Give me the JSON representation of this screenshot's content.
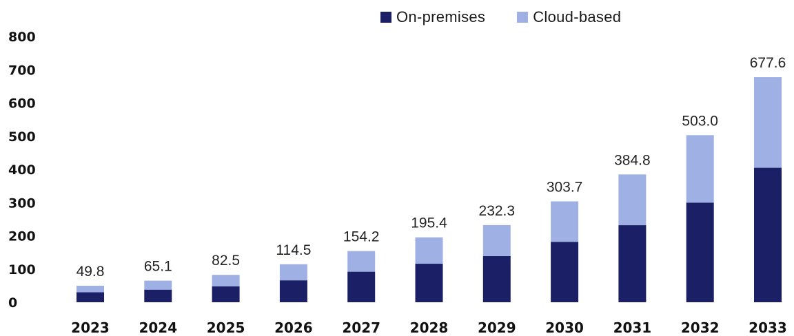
{
  "chart_data": {
    "type": "bar",
    "stacked": true,
    "categories": [
      "2023",
      "2024",
      "2025",
      "2026",
      "2027",
      "2028",
      "2029",
      "2030",
      "2031",
      "2032",
      "2033"
    ],
    "series": [
      {
        "name": "On-premises",
        "color": "#1a1f66",
        "values": [
          30,
          38,
          48,
          66,
          92,
          116,
          139,
          182,
          232,
          300,
          405
        ]
      },
      {
        "name": "Cloud-based",
        "color": "#9fb1e4",
        "values": [
          19.8,
          27.1,
          34.5,
          48.5,
          62.2,
          79.4,
          93.3,
          121.7,
          152.8,
          203.0,
          272.6
        ]
      }
    ],
    "totals": [
      "49.8",
      "65.1",
      "82.5",
      "114.5",
      "154.2",
      "195.4",
      "232.3",
      "303.7",
      "384.8",
      "503.0",
      "677.6"
    ],
    "yticks": [
      "0",
      "100",
      "200",
      "300",
      "400",
      "500",
      "600",
      "700",
      "800"
    ],
    "ylim": [
      0,
      800
    ],
    "legend_position": "top-center",
    "grid": false
  }
}
